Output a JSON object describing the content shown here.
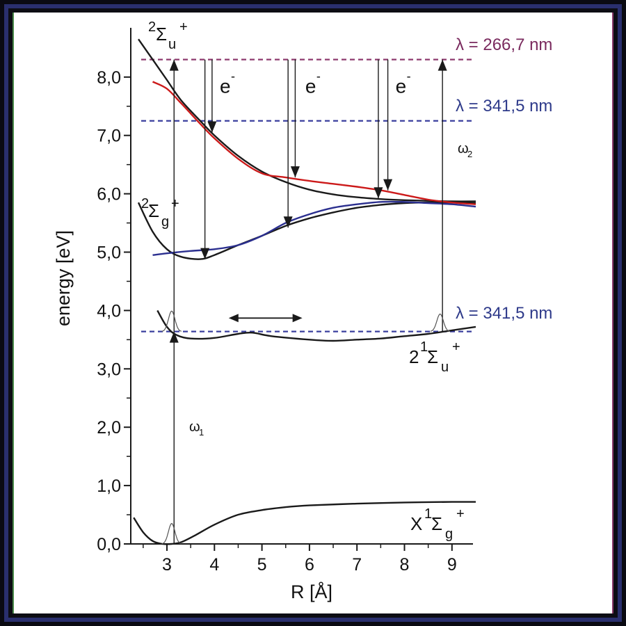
{
  "chart_data": {
    "type": "line",
    "xlabel": "R [Å]",
    "ylabel": "energy [eV]",
    "xlim": [
      2.3,
      9.5
    ],
    "ylim": [
      0,
      8.7
    ],
    "xticks": [
      3,
      4,
      5,
      6,
      7,
      8,
      9
    ],
    "yticks": [
      0.0,
      1.0,
      2.0,
      3.0,
      4.0,
      5.0,
      6.0,
      7.0,
      8.0
    ],
    "ytick_labels": [
      "0,0",
      "1,0",
      "2,0",
      "3,0",
      "4,0",
      "5,0",
      "6,0",
      "7,0",
      "8,0"
    ],
    "colors": {
      "black": "#1a1a1a",
      "red": "#cc1a1a",
      "blue": "#2b2f8f",
      "purple": "#8e3a6e",
      "dash_blue": "#3a3f9e"
    },
    "series": [
      {
        "key": "X",
        "color": "#1a1a1a",
        "x": [
          2.3,
          2.5,
          2.7,
          2.9,
          3.1,
          3.3,
          3.6,
          4.0,
          4.5,
          5.0,
          5.5,
          6.0,
          7.0,
          8.0,
          9.0,
          9.5
        ],
        "y": [
          0.45,
          0.2,
          0.05,
          0.0,
          0.0,
          0.03,
          0.15,
          0.33,
          0.5,
          0.58,
          0.63,
          0.66,
          0.69,
          0.71,
          0.72,
          0.72
        ]
      },
      {
        "key": "A",
        "color": "#1a1a1a",
        "x": [
          2.8,
          3.0,
          3.2,
          3.5,
          4.0,
          4.5,
          4.8,
          5.2,
          6.0,
          6.5,
          7.0,
          7.5,
          8.0,
          8.5,
          9.0,
          9.5
        ],
        "y": [
          4.0,
          3.72,
          3.58,
          3.52,
          3.53,
          3.6,
          3.62,
          3.56,
          3.5,
          3.48,
          3.5,
          3.52,
          3.56,
          3.6,
          3.66,
          3.72
        ]
      },
      {
        "key": "g",
        "color": "#1a1a1a",
        "x": [
          2.4,
          2.7,
          3.0,
          3.3,
          3.7,
          4.0,
          4.5,
          5.0,
          5.5,
          6.0,
          6.5,
          7.0,
          7.5,
          8.0,
          8.5,
          9.0,
          9.5
        ],
        "y": [
          5.85,
          5.35,
          5.05,
          4.92,
          4.88,
          4.95,
          5.12,
          5.28,
          5.45,
          5.58,
          5.68,
          5.76,
          5.81,
          5.84,
          5.85,
          5.85,
          5.84
        ]
      },
      {
        "key": "u",
        "color": "#1a1a1a",
        "x": [
          2.4,
          2.7,
          3.0,
          3.3,
          3.7,
          4.0,
          4.5,
          5.0,
          5.5,
          6.0,
          6.5,
          7.0,
          7.5,
          8.0,
          8.5,
          9.0,
          9.5
        ],
        "y": [
          8.65,
          8.3,
          7.95,
          7.6,
          7.25,
          7.0,
          6.65,
          6.38,
          6.2,
          6.07,
          5.99,
          5.94,
          5.91,
          5.89,
          5.88,
          5.87,
          5.87
        ]
      },
      {
        "key": "red",
        "color": "#cc1a1a",
        "x": [
          2.7,
          3.0,
          3.3,
          3.7,
          4.0,
          4.5,
          5.0,
          5.5,
          6.0,
          6.5,
          7.0,
          7.5,
          8.0,
          8.5,
          9.0,
          9.5
        ],
        "y": [
          7.92,
          7.8,
          7.55,
          7.2,
          6.95,
          6.6,
          6.35,
          6.28,
          6.22,
          6.17,
          6.12,
          6.06,
          5.98,
          5.9,
          5.85,
          5.82
        ]
      },
      {
        "key": "blue",
        "color": "#2b2f8f",
        "x": [
          2.7,
          3.0,
          3.5,
          4.0,
          4.5,
          5.0,
          5.5,
          6.0,
          6.5,
          7.0,
          7.5,
          8.0,
          8.5,
          9.0,
          9.5
        ],
        "y": [
          4.95,
          4.98,
          5.02,
          5.05,
          5.12,
          5.28,
          5.5,
          5.65,
          5.76,
          5.82,
          5.86,
          5.86,
          5.84,
          5.82,
          5.78
        ]
      }
    ],
    "hlines": [
      {
        "y": 8.3,
        "color": "#8e3a6e",
        "label": "λ = 266,7 nm"
      },
      {
        "y": 7.25,
        "color": "#3a3f9e",
        "label": "λ = 341,5 nm"
      },
      {
        "y": 3.64,
        "color": "#3a3f9e",
        "label": "λ = 341,5 nm"
      }
    ],
    "state_labels": {
      "u": {
        "base": "2",
        "sym": "Σ",
        "sub": "u",
        "sup": "+"
      },
      "g": {
        "base": "2",
        "sym": "Σ",
        "sub": "g",
        "sup": "+"
      },
      "A": {
        "pre": "2",
        "base": "1",
        "sym": "Σ",
        "sub": "u",
        "sup": "+"
      },
      "X": {
        "pre": "X",
        "base": "1",
        "sym": "Σ",
        "sub": "g",
        "sup": "+"
      }
    },
    "annotations": {
      "electron": "e",
      "electron_sup": "-",
      "omega1": "ω",
      "omega1_sub": "1",
      "omega2": "ω",
      "omega2_sub": "2"
    },
    "vertical_arrows": [
      {
        "x": 3.15,
        "y_from": 0.0,
        "y_to": 3.64,
        "up": true
      },
      {
        "x": 3.15,
        "y_from": 3.64,
        "y_to": 8.3,
        "up": true
      },
      {
        "x": 8.8,
        "y_from": 3.64,
        "y_to": 8.3,
        "up": true
      },
      {
        "x": 3.8,
        "y_from": 8.3,
        "y_to": 4.88,
        "up": false
      },
      {
        "x": 3.95,
        "y_from": 8.3,
        "y_to": 7.05,
        "up": false
      },
      {
        "x": 5.55,
        "y_from": 8.3,
        "y_to": 5.42,
        "up": false
      },
      {
        "x": 5.7,
        "y_from": 8.3,
        "y_to": 6.28,
        "up": false
      },
      {
        "x": 7.45,
        "y_from": 8.3,
        "y_to": 5.92,
        "up": false
      },
      {
        "x": 7.65,
        "y_from": 8.3,
        "y_to": 6.06,
        "up": false
      }
    ],
    "electron_labels_at": [
      {
        "x": 4.2,
        "y": 7.85
      },
      {
        "x": 6.0,
        "y": 7.85
      },
      {
        "x": 7.9,
        "y": 7.85
      }
    ],
    "wavepackets": [
      {
        "x": 3.1,
        "base": 0.0,
        "height": 0.35
      },
      {
        "x": 3.1,
        "base": 3.64,
        "height": 0.35
      },
      {
        "x": 8.75,
        "base": 3.64,
        "height": 0.3
      }
    ],
    "double_arrow": {
      "x_from": 4.3,
      "x_to": 5.85,
      "y": 3.87
    }
  }
}
